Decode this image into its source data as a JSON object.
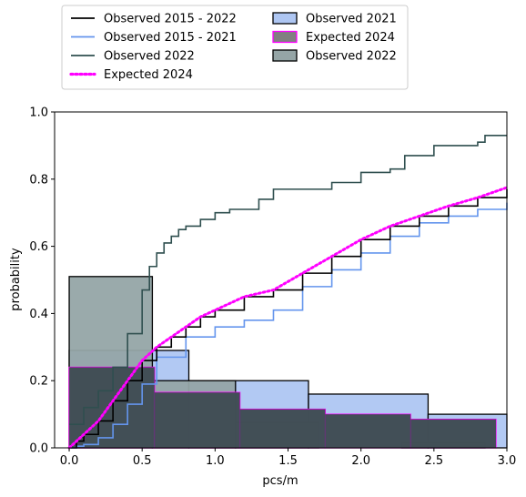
{
  "chart_data": {
    "type": "histogram+ecdf",
    "xlabel": "pcs/m",
    "ylabel": "probability",
    "xlim": [
      -0.1,
      3.0
    ],
    "ylim": [
      0.0,
      1.0
    ],
    "xticks": [
      "0.0",
      "0.5",
      "1.0",
      "1.5",
      "2.0",
      "2.5",
      "3.0"
    ],
    "yticks": [
      "0.0",
      "0.2",
      "0.4",
      "0.6",
      "0.8",
      "1.0"
    ],
    "grid": false,
    "legend_position": "top, above plot, 2 columns",
    "legend": [
      {
        "label": "Observed 2015 - 2022",
        "kind": "line",
        "color": "#000000"
      },
      {
        "label": "Observed 2015 - 2021",
        "kind": "line",
        "color": "#6495ED"
      },
      {
        "label": "Observed 2022",
        "kind": "line",
        "color": "#2F4F4F"
      },
      {
        "label": "Expected 2024",
        "kind": "dotted",
        "color": "#FF00FF"
      },
      {
        "label": "Observed 2021",
        "kind": "patch",
        "color": "#AEC6F2",
        "edge": "#000000"
      },
      {
        "label": "Expected 2024",
        "kind": "patch",
        "color": "#808080",
        "edge": "#FF00FF"
      },
      {
        "label": "Observed 2022",
        "kind": "patch",
        "color": "#95A5A6",
        "edge": "#000000"
      }
    ],
    "histograms": [
      {
        "name": "Observed 2021",
        "color": "#AEC6F2",
        "edge": "#000000",
        "edges": [
          0.0,
          0.82,
          1.64,
          2.46,
          3.28
        ],
        "values": [
          0.29,
          0.2,
          0.16,
          0.1
        ]
      },
      {
        "name": "Observed 2022",
        "color": "#95A5A6",
        "edge": "#000000",
        "edges": [
          0.0,
          0.57,
          1.14,
          1.71,
          2.28,
          2.85
        ],
        "values": [
          0.51,
          0.2,
          0.075,
          0.0,
          0.015
        ]
      },
      {
        "name": "Expected 2024",
        "color": "#808080",
        "edge": "#FF00FF",
        "edges": [
          0.0,
          0.585,
          1.17,
          1.755,
          2.34,
          2.925
        ],
        "values": [
          0.24,
          0.165,
          0.115,
          0.1,
          0.085
        ]
      }
    ],
    "dark_overlay": {
      "color": "#37474F",
      "rects": [
        {
          "x0": 0.0,
          "x1": 0.585,
          "top": 0.24
        },
        {
          "x0": 0.585,
          "x1": 0.82,
          "top": 0.165
        },
        {
          "x0": 0.82,
          "x1": 1.17,
          "top": 0.165
        },
        {
          "x0": 1.17,
          "x1": 1.755,
          "top": 0.115
        },
        {
          "x0": 1.755,
          "x1": 2.34,
          "top": 0.1
        },
        {
          "x0": 2.34,
          "x1": 2.925,
          "top": 0.085
        }
      ]
    },
    "series": [
      {
        "name": "Observed 2015 - 2021",
        "color": "#6495ED",
        "style": "step",
        "x": [
          0.0,
          0.05,
          0.1,
          0.2,
          0.3,
          0.4,
          0.5,
          0.6,
          0.8,
          1.0,
          1.2,
          1.4,
          1.6,
          1.8,
          2.0,
          2.2,
          2.4,
          2.6,
          2.8,
          3.0
        ],
        "y": [
          0.0,
          0.005,
          0.01,
          0.03,
          0.07,
          0.13,
          0.19,
          0.27,
          0.33,
          0.36,
          0.38,
          0.41,
          0.48,
          0.53,
          0.58,
          0.63,
          0.67,
          0.69,
          0.71,
          0.73
        ]
      },
      {
        "name": "Observed 2015 - 2022",
        "color": "#000000",
        "style": "step",
        "x": [
          0.0,
          0.05,
          0.1,
          0.2,
          0.3,
          0.4,
          0.5,
          0.6,
          0.7,
          0.8,
          0.9,
          1.0,
          1.2,
          1.4,
          1.6,
          1.8,
          2.0,
          2.2,
          2.4,
          2.6,
          2.8,
          3.0
        ],
        "y": [
          0.0,
          0.02,
          0.04,
          0.08,
          0.14,
          0.2,
          0.26,
          0.3,
          0.33,
          0.36,
          0.39,
          0.41,
          0.45,
          0.47,
          0.52,
          0.57,
          0.62,
          0.66,
          0.69,
          0.72,
          0.745,
          0.77
        ]
      },
      {
        "name": "Expected 2024",
        "color": "#FF00FF",
        "style": "dotted",
        "x": [
          0.0,
          0.05,
          0.1,
          0.2,
          0.3,
          0.4,
          0.5,
          0.6,
          0.7,
          0.8,
          0.9,
          1.0,
          1.2,
          1.4,
          1.6,
          1.8,
          2.0,
          2.2,
          2.4,
          2.6,
          2.8,
          3.0
        ],
        "y": [
          0.0,
          0.02,
          0.04,
          0.08,
          0.14,
          0.2,
          0.26,
          0.3,
          0.33,
          0.36,
          0.39,
          0.41,
          0.45,
          0.47,
          0.52,
          0.57,
          0.62,
          0.66,
          0.69,
          0.72,
          0.745,
          0.775
        ]
      },
      {
        "name": "Observed 2022",
        "color": "#2F4F4F",
        "style": "step",
        "x": [
          0.0,
          0.1,
          0.2,
          0.3,
          0.4,
          0.5,
          0.55,
          0.6,
          0.65,
          0.7,
          0.75,
          0.8,
          0.9,
          1.0,
          1.1,
          1.3,
          1.4,
          1.6,
          1.8,
          2.0,
          2.2,
          2.3,
          2.5,
          2.8,
          2.85,
          3.0
        ],
        "y": [
          0.07,
          0.12,
          0.17,
          0.24,
          0.34,
          0.47,
          0.54,
          0.58,
          0.61,
          0.63,
          0.65,
          0.66,
          0.68,
          0.7,
          0.71,
          0.74,
          0.77,
          0.77,
          0.79,
          0.82,
          0.83,
          0.87,
          0.9,
          0.91,
          0.93,
          0.93
        ]
      }
    ]
  }
}
